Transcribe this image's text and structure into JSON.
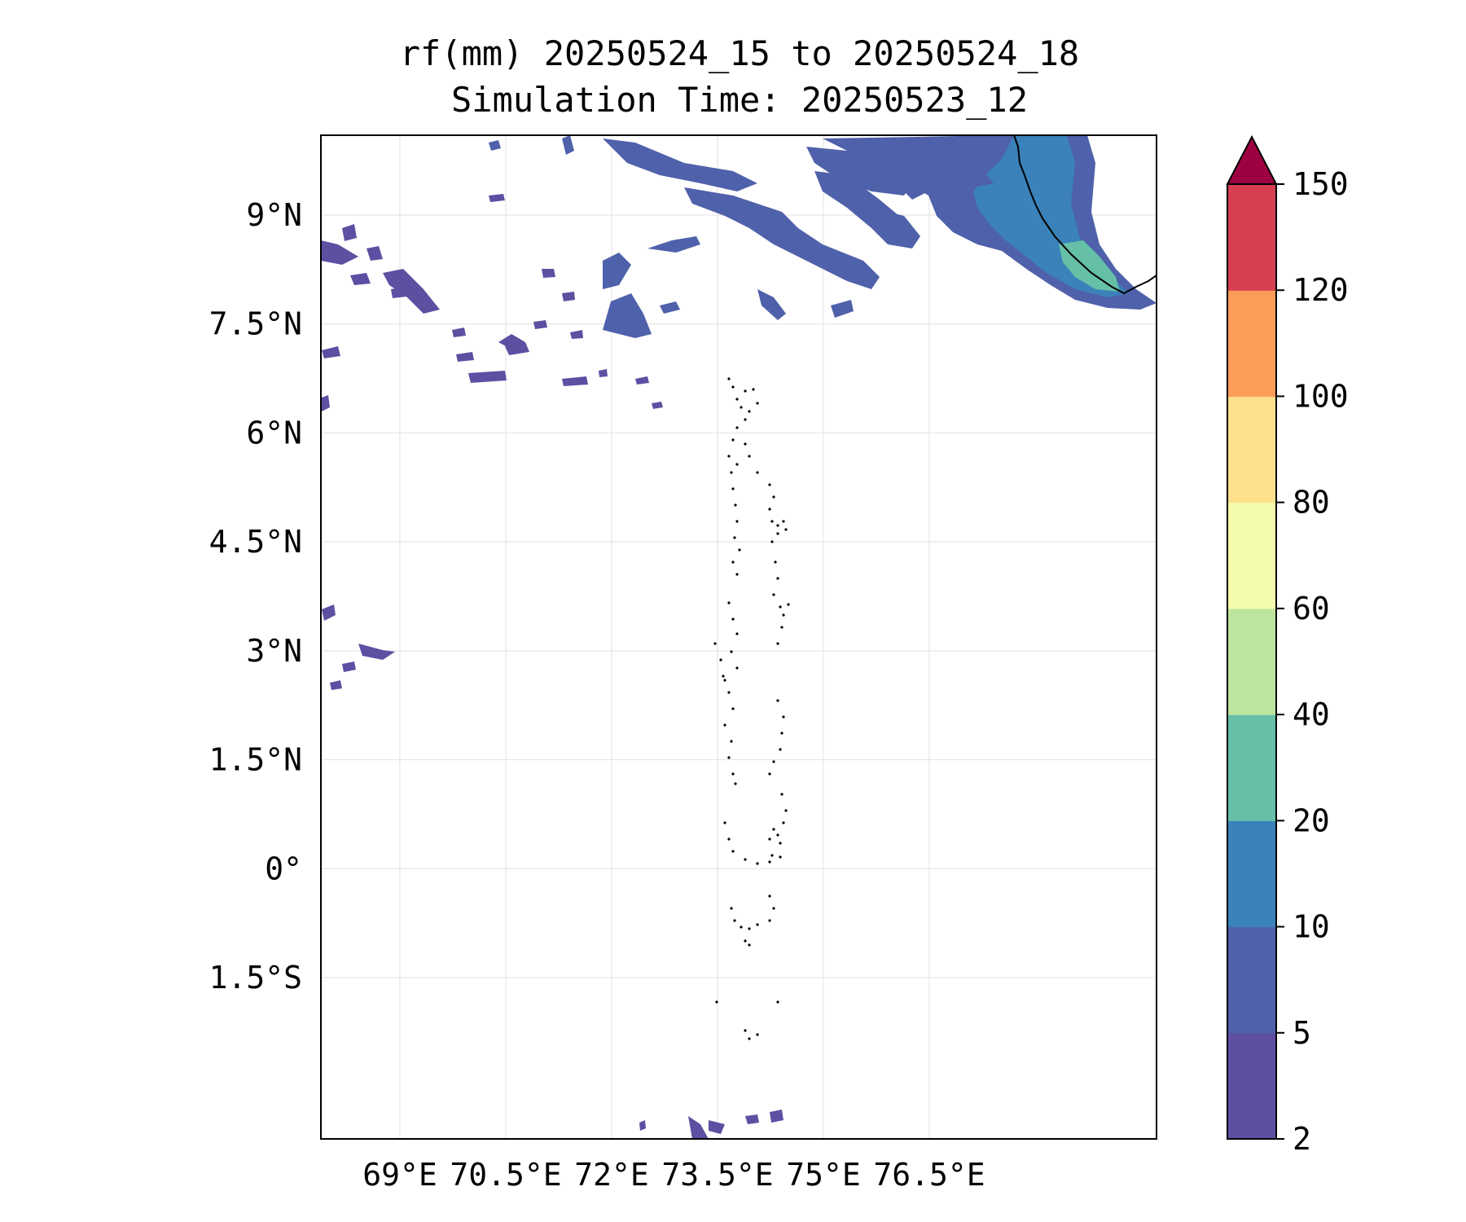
{
  "title_line1": "rf(mm) 20250524_15 to 20250524_18",
  "title_line2": "Simulation Time: 20250523_12",
  "map": {
    "lon_ticks": [
      {
        "value": 69,
        "label": "69°E"
      },
      {
        "value": 70.5,
        "label": "70.5°E"
      },
      {
        "value": 72,
        "label": "72°E"
      },
      {
        "value": 73.5,
        "label": "73.5°E"
      },
      {
        "value": 75,
        "label": "75°E"
      },
      {
        "value": 76.5,
        "label": "76.5°E"
      }
    ],
    "lat_ticks": [
      {
        "value": 9,
        "label": "9°N"
      },
      {
        "value": 7.5,
        "label": "7.5°N"
      },
      {
        "value": 6,
        "label": "6°N"
      },
      {
        "value": 4.5,
        "label": "4.5°N"
      },
      {
        "value": 3,
        "label": "3°N"
      },
      {
        "value": 1.5,
        "label": "1.5°N"
      },
      {
        "value": 0,
        "label": "0°"
      },
      {
        "value": -1.5,
        "label": "1.5°S"
      }
    ],
    "grid": true
  },
  "colorbar": {
    "levels": [
      "2",
      "5",
      "10",
      "20",
      "40",
      "60",
      "80",
      "100",
      "120",
      "150"
    ],
    "colors": [
      "#5e4fa2",
      "#4f61aa",
      "#3a82b9",
      "#65c0a7",
      "#bee5a0",
      "#f4fbad",
      "#fde08b",
      "#fb9d58",
      "#d53f4f"
    ],
    "extend_color": "#9e0142",
    "extend": "max"
  }
}
